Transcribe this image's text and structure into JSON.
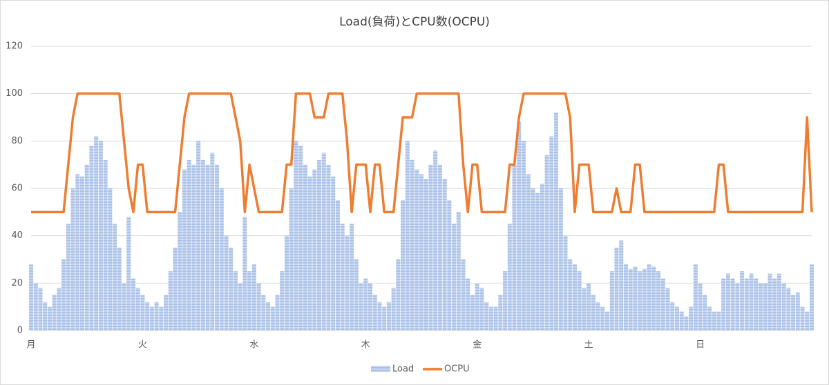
{
  "chart_data": {
    "type": "bar_line",
    "title": "Load(負荷)とCPU数(OCPU)",
    "categories": [
      "月",
      null,
      null,
      null,
      null,
      null,
      null,
      null,
      null,
      null,
      null,
      null,
      null,
      null,
      null,
      null,
      null,
      null,
      null,
      null,
      null,
      null,
      null,
      null,
      "火",
      null,
      null,
      null,
      null,
      null,
      null,
      null,
      null,
      null,
      null,
      null,
      null,
      null,
      null,
      null,
      null,
      null,
      null,
      null,
      null,
      null,
      null,
      null,
      "水",
      null,
      null,
      null,
      null,
      null,
      null,
      null,
      null,
      null,
      null,
      null,
      null,
      null,
      null,
      null,
      null,
      null,
      null,
      null,
      null,
      null,
      null,
      null,
      "木",
      null,
      null,
      null,
      null,
      null,
      null,
      null,
      null,
      null,
      null,
      null,
      null,
      null,
      null,
      null,
      null,
      null,
      null,
      null,
      null,
      null,
      null,
      null,
      "金",
      null,
      null,
      null,
      null,
      null,
      null,
      null,
      null,
      null,
      null,
      null,
      null,
      null,
      null,
      null,
      null,
      null,
      null,
      null,
      null,
      null,
      null,
      null,
      "土",
      null,
      null,
      null,
      null,
      null,
      null,
      null,
      null,
      null,
      null,
      null,
      null,
      null,
      null,
      null,
      null,
      null,
      null,
      null,
      null,
      null,
      null,
      null,
      "日",
      null,
      null,
      null,
      null,
      null,
      null,
      null,
      null,
      null,
      null,
      null,
      null,
      null,
      null,
      null,
      null,
      null,
      null,
      null,
      null,
      null,
      null,
      null,
      null
    ],
    "series": [
      {
        "name": "Load",
        "kind": "bar",
        "color": "#a9c1e8",
        "values": [
          28,
          20,
          18,
          12,
          10,
          15,
          18,
          30,
          45,
          60,
          66,
          65,
          70,
          78,
          82,
          80,
          72,
          60,
          45,
          35,
          20,
          48,
          22,
          18,
          15,
          12,
          10,
          12,
          10,
          15,
          25,
          35,
          50,
          68,
          72,
          70,
          80,
          72,
          70,
          75,
          70,
          60,
          40,
          35,
          25,
          20,
          48,
          25,
          28,
          20,
          15,
          12,
          10,
          15,
          25,
          40,
          60,
          80,
          78,
          70,
          65,
          68,
          72,
          75,
          70,
          65,
          55,
          45,
          40,
          45,
          30,
          20,
          22,
          20,
          15,
          12,
          10,
          12,
          18,
          30,
          55,
          80,
          72,
          68,
          66,
          64,
          70,
          76,
          70,
          64,
          55,
          45,
          50,
          30,
          22,
          15,
          20,
          18,
          12,
          10,
          10,
          15,
          25,
          45,
          70,
          88,
          80,
          66,
          60,
          58,
          62,
          74,
          82,
          92,
          60,
          40,
          30,
          28,
          25,
          18,
          20,
          15,
          12,
          10,
          8,
          25,
          35,
          38,
          28,
          26,
          27,
          25,
          26,
          28,
          27,
          25,
          22,
          18,
          12,
          10,
          8,
          6,
          10,
          28,
          20,
          15,
          10,
          8,
          8,
          22,
          24,
          22,
          20,
          25,
          22,
          24,
          22,
          20,
          20,
          24,
          22,
          24,
          20,
          18,
          15,
          16,
          10,
          8,
          28
        ]
      },
      {
        "name": "OCPU",
        "kind": "line",
        "color": "#ed7d31",
        "values": [
          50,
          50,
          50,
          50,
          50,
          50,
          50,
          50,
          70,
          90,
          100,
          100,
          100,
          100,
          100,
          100,
          100,
          100,
          100,
          100,
          80,
          60,
          50,
          70,
          70,
          50,
          50,
          50,
          50,
          50,
          50,
          50,
          70,
          90,
          100,
          100,
          100,
          100,
          100,
          100,
          100,
          100,
          100,
          100,
          90,
          80,
          50,
          70,
          60,
          50,
          50,
          50,
          50,
          50,
          50,
          70,
          70,
          100,
          100,
          100,
          100,
          90,
          90,
          90,
          100,
          100,
          100,
          100,
          80,
          50,
          70,
          70,
          70,
          50,
          70,
          70,
          50,
          50,
          50,
          70,
          90,
          90,
          90,
          100,
          100,
          100,
          100,
          100,
          100,
          100,
          100,
          100,
          100,
          70,
          50,
          70,
          70,
          50,
          50,
          50,
          50,
          50,
          50,
          70,
          70,
          90,
          100,
          100,
          100,
          100,
          100,
          100,
          100,
          100,
          100,
          100,
          90,
          50,
          70,
          70,
          70,
          50,
          50,
          50,
          50,
          50,
          60,
          50,
          50,
          50,
          70,
          70,
          50,
          50,
          50,
          50,
          50,
          50,
          50,
          50,
          50,
          50,
          50,
          50,
          50,
          50,
          50,
          50,
          70,
          70,
          50,
          50,
          50,
          50,
          50,
          50,
          50,
          50,
          50,
          50,
          50,
          50,
          50,
          50,
          50,
          50,
          50,
          90,
          50
        ]
      }
    ],
    "ylim": [
      0,
      120
    ],
    "yticks": [
      0,
      20,
      40,
      60,
      80,
      100,
      120
    ],
    "grid": true,
    "legend": "bottom"
  }
}
